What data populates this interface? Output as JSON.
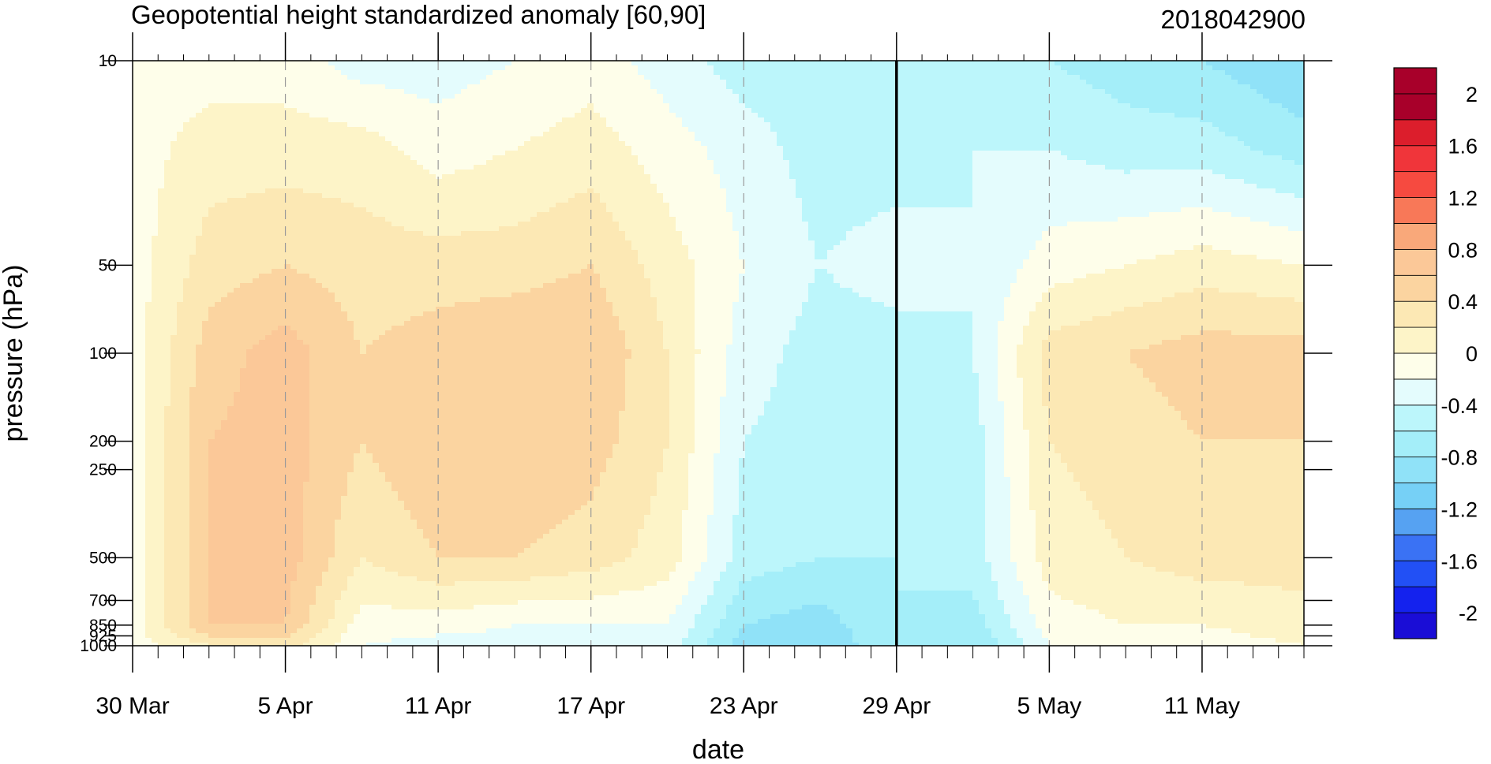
{
  "chart_data": {
    "type": "heatmap",
    "title": "Geopotential height standardized anomaly [60,90]",
    "run_label": "2018042900",
    "xlabel": "date",
    "ylabel": "pressure (hPa)",
    "y_scale": "log",
    "y_reversed": true,
    "ylim": [
      1000,
      10
    ],
    "xlim": [
      "2018-03-30",
      "2018-05-15"
    ],
    "x_ticks": [
      {
        "date": "2018-03-30",
        "label": "30 Mar"
      },
      {
        "date": "2018-04-05",
        "label": "5 Apr"
      },
      {
        "date": "2018-04-11",
        "label": "11 Apr"
      },
      {
        "date": "2018-04-17",
        "label": "17 Apr"
      },
      {
        "date": "2018-04-23",
        "label": "23 Apr"
      },
      {
        "date": "2018-04-29",
        "label": "29 Apr"
      },
      {
        "date": "2018-05-05",
        "label": "5 May"
      },
      {
        "date": "2018-05-11",
        "label": "11 May"
      }
    ],
    "y_ticks": [
      {
        "value": 10,
        "label": "10"
      },
      {
        "value": 50,
        "label": "50"
      },
      {
        "value": 100,
        "label": "100"
      },
      {
        "value": 200,
        "label": "200"
      },
      {
        "value": 250,
        "label": "250"
      },
      {
        "value": 500,
        "label": "500"
      },
      {
        "value": 700,
        "label": "700"
      },
      {
        "value": 850,
        "label": "850"
      },
      {
        "value": 925,
        "label": "925"
      },
      {
        "value": 1000,
        "label": "1000"
      }
    ],
    "vertical_marker_date": "2018-04-29",
    "grid": "dashed vertical lines at date ticks",
    "legend": {
      "placement": "right",
      "levels": [
        -2.2,
        -2.0,
        -1.8,
        -1.6,
        -1.4,
        -1.2,
        -1.0,
        -0.8,
        -0.6,
        -0.4,
        -0.2,
        0.0,
        0.2,
        0.4,
        0.6,
        0.8,
        1.0,
        1.2,
        1.4,
        1.6,
        1.8,
        2.0,
        2.2
      ],
      "colors": [
        "#1a0dd6",
        "#1422ee",
        "#2250f5",
        "#3a72f4",
        "#56a2f2",
        "#76d0f6",
        "#90e2f8",
        "#a4eef9",
        "#bcf6fb",
        "#e4fcfd",
        "#fefeea",
        "#fdf4c8",
        "#fce8b4",
        "#fbd4a0",
        "#fbc898",
        "#f9a87a",
        "#f87858",
        "#f64a40",
        "#f0353a",
        "#dc1e2c",
        "#a8002a",
        "#a8002a"
      ],
      "labels": [
        {
          "value": 2.0,
          "text": "2"
        },
        {
          "value": 1.6,
          "text": "1.6"
        },
        {
          "value": 1.2,
          "text": "1.2"
        },
        {
          "value": 0.8,
          "text": "0.8"
        },
        {
          "value": 0.4,
          "text": "0.4"
        },
        {
          "value": 0.0,
          "text": "0"
        },
        {
          "value": -0.4,
          "text": "-0.4"
        },
        {
          "value": -0.8,
          "text": "-0.8"
        },
        {
          "value": -1.2,
          "text": "-1.2"
        },
        {
          "value": -1.6,
          "text": "-1.6"
        },
        {
          "value": -2.0,
          "text": "-2"
        }
      ]
    },
    "grid_dates": [
      "2018-03-30",
      "2018-04-02",
      "2018-04-05",
      "2018-04-08",
      "2018-04-11",
      "2018-04-14",
      "2018-04-17",
      "2018-04-20",
      "2018-04-23",
      "2018-04-26",
      "2018-04-29",
      "2018-05-02",
      "2018-05-05",
      "2018-05-08",
      "2018-05-11",
      "2018-05-15"
    ],
    "grid_pressures": [
      10,
      20,
      50,
      100,
      200,
      500,
      850,
      1000
    ],
    "values": [
      [
        -0.1,
        -0.1,
        -0.1,
        -0.1,
        -0.1,
        -0.1,
        -0.1,
        -0.1
      ],
      [
        -0.1,
        0.1,
        0.3,
        0.5,
        0.6,
        0.6,
        0.6,
        0.2
      ],
      [
        -0.1,
        0.1,
        0.4,
        0.7,
        0.7,
        0.7,
        0.6,
        0.3
      ],
      [
        -0.3,
        0.1,
        0.3,
        0.4,
        0.4,
        0.2,
        -0.1,
        -0.2
      ],
      [
        -0.3,
        -0.1,
        0.3,
        0.5,
        0.6,
        0.4,
        -0.1,
        -0.3
      ],
      [
        -0.2,
        0.0,
        0.3,
        0.6,
        0.6,
        0.4,
        -0.2,
        -0.3
      ],
      [
        -0.1,
        0.1,
        0.4,
        0.6,
        0.5,
        0.3,
        -0.2,
        -0.3
      ],
      [
        -0.3,
        -0.1,
        0.1,
        0.2,
        0.2,
        0.1,
        -0.2,
        -0.3
      ],
      [
        -0.5,
        -0.3,
        -0.2,
        -0.3,
        -0.4,
        -0.5,
        -0.8,
        -0.9
      ],
      [
        -0.5,
        -0.5,
        -0.4,
        -0.5,
        -0.5,
        -0.6,
        -0.9,
        -1.0
      ],
      [
        -0.5,
        -0.5,
        -0.3,
        -0.5,
        -0.6,
        -0.6,
        -0.6,
        -0.6
      ],
      [
        -0.4,
        -0.4,
        -0.4,
        -0.4,
        -0.5,
        -0.5,
        -0.7,
        -0.8
      ],
      [
        -0.6,
        -0.4,
        -0.1,
        0.3,
        0.2,
        0.1,
        -0.1,
        -0.2
      ],
      [
        -0.7,
        -0.5,
        0.0,
        0.4,
        0.3,
        0.2,
        0.0,
        -0.1
      ],
      [
        -0.8,
        -0.5,
        0.1,
        0.5,
        0.4,
        0.3,
        0.0,
        -0.1
      ],
      [
        -1.0,
        -0.7,
        0.0,
        0.5,
        0.4,
        0.3,
        0.1,
        0.0
      ]
    ]
  }
}
